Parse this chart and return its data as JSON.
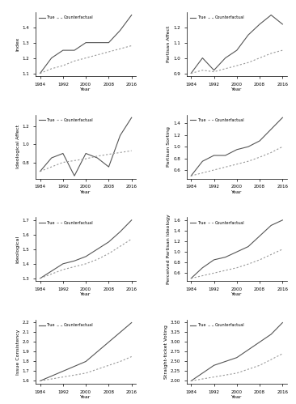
{
  "years": [
    1984,
    1988,
    1992,
    1996,
    2000,
    2004,
    2008,
    2012,
    2016
  ],
  "panels": [
    {
      "title": "",
      "ylabel": "Index",
      "true": [
        1.1,
        1.2,
        1.25,
        1.25,
        1.3,
        1.3,
        1.3,
        1.38,
        1.48
      ],
      "counterfactual": [
        1.1,
        1.13,
        1.15,
        1.18,
        1.2,
        1.22,
        1.24,
        1.26,
        1.28
      ]
    },
    {
      "title": "",
      "ylabel": "Partisan Affect",
      "true": [
        0.9,
        1.0,
        0.92,
        1.0,
        1.05,
        1.15,
        1.22,
        1.28,
        1.22
      ],
      "counterfactual": [
        0.9,
        0.92,
        0.91,
        0.93,
        0.95,
        0.97,
        1.0,
        1.03,
        1.05
      ]
    },
    {
      "title": "",
      "ylabel": "Ideological Affect",
      "true": [
        0.7,
        0.85,
        0.9,
        0.65,
        0.9,
        0.85,
        0.75,
        1.1,
        1.3
      ],
      "counterfactual": [
        0.7,
        0.75,
        0.8,
        0.82,
        0.84,
        0.87,
        0.89,
        0.91,
        0.93
      ]
    },
    {
      "title": "",
      "ylabel": "Partisan Sorting",
      "true": [
        0.5,
        0.75,
        0.85,
        0.85,
        0.95,
        1.0,
        1.1,
        1.3,
        1.5
      ],
      "counterfactual": [
        0.5,
        0.55,
        0.6,
        0.65,
        0.7,
        0.75,
        0.82,
        0.9,
        1.0
      ]
    },
    {
      "title": "",
      "ylabel": "Ideological",
      "true": [
        1.3,
        1.35,
        1.4,
        1.42,
        1.45,
        1.5,
        1.55,
        1.62,
        1.7
      ],
      "counterfactual": [
        1.3,
        1.33,
        1.36,
        1.38,
        1.4,
        1.43,
        1.47,
        1.52,
        1.57
      ]
    },
    {
      "title": "",
      "ylabel": "Perceived Partisan Ideology",
      "true": [
        0.5,
        0.7,
        0.85,
        0.9,
        1.0,
        1.1,
        1.3,
        1.5,
        1.6
      ],
      "counterfactual": [
        0.5,
        0.55,
        0.6,
        0.65,
        0.7,
        0.77,
        0.85,
        0.95,
        1.05
      ]
    },
    {
      "title": "",
      "ylabel": "Issue Consistency",
      "true": [
        1.6,
        1.65,
        1.7,
        1.75,
        1.8,
        1.9,
        2.0,
        2.1,
        2.2
      ],
      "counterfactual": [
        1.6,
        1.62,
        1.64,
        1.66,
        1.68,
        1.72,
        1.76,
        1.8,
        1.85
      ]
    },
    {
      "title": "",
      "ylabel": "Straight-ticket Voting",
      "true": [
        2.0,
        2.2,
        2.4,
        2.5,
        2.6,
        2.8,
        3.0,
        3.2,
        3.5
      ],
      "counterfactual": [
        2.0,
        2.05,
        2.1,
        2.15,
        2.2,
        2.3,
        2.4,
        2.55,
        2.7
      ]
    }
  ],
  "true_color": "#555555",
  "counterfactual_color": "#999999",
  "true_linestyle": "solid",
  "counterfactual_linestyle": "dotted",
  "legend_labels": [
    "True",
    "Counterfactual"
  ],
  "xlabel": "Year",
  "tick_years": [
    1984,
    1992,
    2000,
    2008,
    2016
  ]
}
